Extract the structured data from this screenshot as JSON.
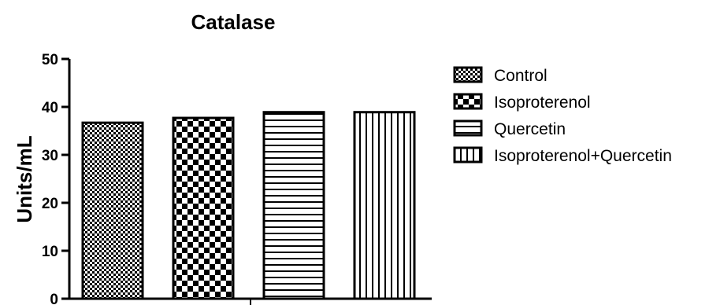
{
  "chart_data": {
    "type": "bar",
    "title": "Catalase",
    "ylabel": "Units/mL",
    "xlabel": "",
    "ylim": [
      0,
      50
    ],
    "yticks": [
      0,
      10,
      20,
      30,
      40,
      50
    ],
    "series": [
      {
        "name": "Control",
        "value": 36.7,
        "pattern": "checker-fine"
      },
      {
        "name": "Isoproterenol",
        "value": 37.7,
        "pattern": "checker-coarse"
      },
      {
        "name": "Quercetin",
        "value": 38.9,
        "pattern": "horizontal-lines"
      },
      {
        "name": "Isoproterenol+Quercetin",
        "value": 38.9,
        "pattern": "vertical-lines"
      }
    ],
    "legend_position": "right",
    "grid": false,
    "colors": {
      "bar_fill": "#ffffff",
      "pattern": "#000000",
      "axis": "#000000"
    }
  }
}
